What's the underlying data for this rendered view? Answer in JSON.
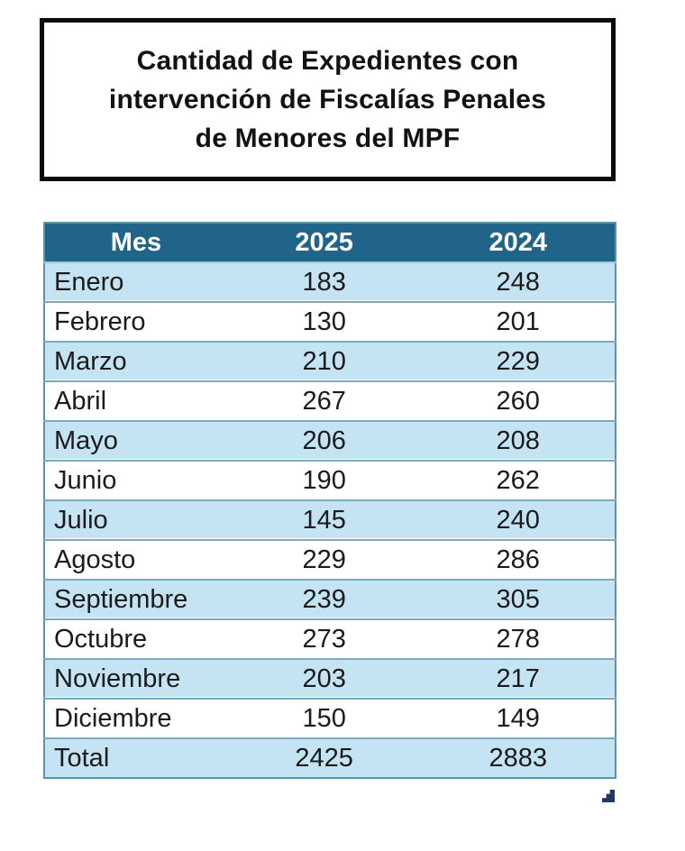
{
  "title_box": {
    "lines": [
      "Cantidad de Expedientes con",
      "intervención de Fiscalías Penales",
      "de Menores del MPF"
    ]
  },
  "table": {
    "headers": [
      "Mes",
      "2025",
      "2024"
    ],
    "rows": [
      [
        "Enero",
        "183",
        "248"
      ],
      [
        "Febrero",
        "130",
        "201"
      ],
      [
        "Marzo",
        "210",
        "229"
      ],
      [
        "Abril",
        "267",
        "260"
      ],
      [
        "Mayo",
        "206",
        "208"
      ],
      [
        "Junio",
        "190",
        "262"
      ],
      [
        "Julio",
        "145",
        "240"
      ],
      [
        "Agosto",
        "229",
        "286"
      ],
      [
        "Septiembre",
        "239",
        "305"
      ],
      [
        "Octubre",
        "273",
        "278"
      ],
      [
        "Noviembre",
        "203",
        "217"
      ],
      [
        "Diciembre",
        "150",
        "149"
      ]
    ],
    "total_row": [
      "Total",
      "2425",
      "2883"
    ]
  },
  "colors": {
    "header_bg": "#20648A",
    "header_text": "#FFFFFF",
    "band_row_bg": "#C4E4F3",
    "row_border": "#7EA8BE",
    "outer_border": "#5E93AE",
    "title_border": "#0B0B0B",
    "resize_handle": "#1F3864"
  }
}
